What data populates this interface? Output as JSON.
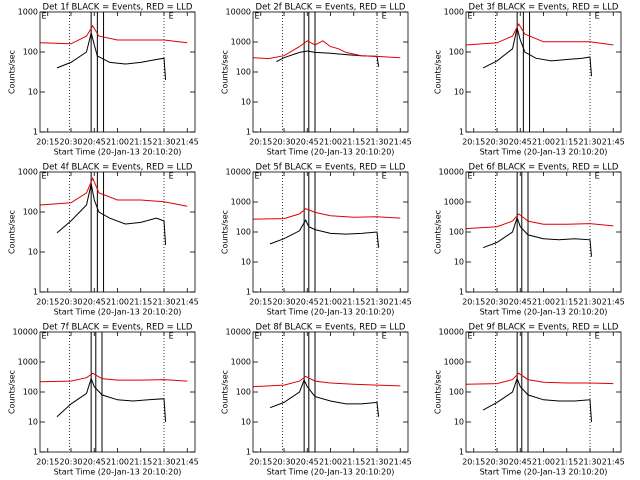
{
  "chart_data": [
    {
      "type": "line",
      "title": "Det 1f BLACK = Events, RED = LLD",
      "x_label": "Start Time (20-Jan-13 20:10:20)",
      "y_label": "Counts/sec",
      "log_y": true,
      "xlim": [
        "20:10",
        "21:50"
      ],
      "xticks": [
        "20:15",
        "20:30",
        "20:45",
        "21:00",
        "21:15",
        "21:30",
        "21:45"
      ],
      "ylim": [
        1,
        1000
      ],
      "yticks": [
        1,
        10,
        100,
        1000
      ],
      "dotted_lines": [
        "20:29",
        "21:30"
      ],
      "solid_lines": [
        "20:43",
        "20:47",
        "20:51"
      ],
      "annotations": [
        {
          "x": "20:11",
          "text": "E"
        },
        {
          "x": "21:33",
          "text": "E"
        }
      ],
      "series": [
        {
          "color": "#000000",
          "x": [
            "20:21",
            "20:30",
            "20:40",
            "20:43",
            "20:45",
            "20:47",
            "20:55",
            "21:05",
            "21:15",
            "21:25",
            "21:30",
            "21:31"
          ],
          "values": [
            40,
            55,
            100,
            300,
            150,
            80,
            55,
            50,
            55,
            65,
            70,
            20
          ]
        },
        {
          "color": "#e00000",
          "x": [
            "20:10",
            "20:30",
            "20:40",
            "20:44",
            "20:48",
            "21:00",
            "21:15",
            "21:30",
            "21:45"
          ],
          "values": [
            170,
            160,
            250,
            450,
            250,
            200,
            200,
            200,
            170
          ]
        }
      ]
    },
    {
      "type": "line",
      "title": "Det 2f BLACK = Events, RED = LLD",
      "x_label": "Start Time (20-Jan-13 20:10:20)",
      "y_label": "Counts/sec",
      "log_y": true,
      "xlim": [
        "20:10",
        "21:50"
      ],
      "xticks": [
        "20:15",
        "20:30",
        "20:45",
        "21:00",
        "21:15",
        "21:30",
        "21:45"
      ],
      "ylim": [
        1,
        10000
      ],
      "yticks": [
        1,
        10,
        100,
        1000,
        10000
      ],
      "dotted_lines": [
        "20:29",
        "21:30"
      ],
      "solid_lines": [
        "20:43",
        "20:46",
        "20:50"
      ],
      "annotations": [
        {
          "x": "20:11",
          "text": "E"
        },
        {
          "x": "21:33",
          "text": "E"
        }
      ],
      "series": [
        {
          "color": "#000000",
          "x": [
            "20:25",
            "20:30",
            "20:40",
            "20:45",
            "20:50",
            "21:00",
            "21:10",
            "21:20",
            "21:30",
            "21:31"
          ],
          "values": [
            220,
            300,
            450,
            500,
            450,
            420,
            380,
            350,
            330,
            150
          ]
        },
        {
          "color": "#e00000",
          "x": [
            "20:10",
            "20:20",
            "20:30",
            "20:40",
            "20:45",
            "20:50",
            "20:55",
            "21:00",
            "21:05",
            "21:10",
            "21:20",
            "21:30",
            "21:45"
          ],
          "values": [
            300,
            280,
            350,
            700,
            1100,
            800,
            1100,
            700,
            600,
            450,
            350,
            330,
            300
          ]
        }
      ]
    },
    {
      "type": "line",
      "title": "Det 3f BLACK = Events, RED = LLD",
      "x_label": "Start Time (20-Jan-13 20:10:20)",
      "y_label": "Counts/sec",
      "log_y": true,
      "xlim": [
        "20:10",
        "21:50"
      ],
      "xticks": [
        "20:15",
        "20:30",
        "20:45",
        "21:00",
        "21:15",
        "21:30",
        "21:45"
      ],
      "ylim": [
        1,
        1000
      ],
      "yticks": [
        1,
        10,
        100,
        1000
      ],
      "dotted_lines": [
        "20:29",
        "21:30"
      ],
      "solid_lines": [
        "20:43",
        "20:47",
        "20:51"
      ],
      "annotations": [
        {
          "x": "20:11",
          "text": "E"
        },
        {
          "x": "21:33",
          "text": "E"
        }
      ],
      "series": [
        {
          "color": "#000000",
          "x": [
            "20:21",
            "20:30",
            "20:40",
            "20:43",
            "20:45",
            "20:48",
            "20:55",
            "21:05",
            "21:15",
            "21:25",
            "21:30",
            "21:31"
          ],
          "values": [
            40,
            60,
            120,
            400,
            200,
            100,
            70,
            60,
            65,
            70,
            75,
            25
          ]
        },
        {
          "color": "#e00000",
          "x": [
            "20:10",
            "20:30",
            "20:40",
            "20:44",
            "20:48",
            "21:00",
            "21:15",
            "21:30",
            "21:45"
          ],
          "values": [
            150,
            170,
            250,
            500,
            280,
            180,
            180,
            180,
            150
          ]
        }
      ]
    },
    {
      "type": "line",
      "title": "Det 4f BLACK = Events, RED = LLD",
      "x_label": "Start Time (20-Jan-13 20:10:20)",
      "y_label": "Counts/sec",
      "log_y": true,
      "xlim": [
        "20:10",
        "21:50"
      ],
      "xticks": [
        "20:15",
        "20:30",
        "20:45",
        "21:00",
        "21:15",
        "21:30",
        "21:45"
      ],
      "ylim": [
        1,
        1000
      ],
      "yticks": [
        1,
        10,
        100,
        1000
      ],
      "dotted_lines": [
        "20:29",
        "21:30"
      ],
      "solid_lines": [
        "20:43",
        "20:47",
        "20:51"
      ],
      "annotations": [
        {
          "x": "20:11",
          "text": "E"
        },
        {
          "x": "21:33",
          "text": "E"
        }
      ],
      "series": [
        {
          "color": "#000000",
          "x": [
            "20:21",
            "20:30",
            "20:40",
            "20:43",
            "20:45",
            "20:48",
            "20:55",
            "21:05",
            "21:15",
            "21:25",
            "21:30",
            "21:31"
          ],
          "values": [
            30,
            60,
            150,
            500,
            200,
            100,
            70,
            50,
            55,
            70,
            60,
            15
          ]
        },
        {
          "color": "#e00000",
          "x": [
            "20:10",
            "20:30",
            "20:40",
            "20:44",
            "20:48",
            "21:00",
            "21:15",
            "21:30",
            "21:45"
          ],
          "values": [
            150,
            170,
            300,
            700,
            300,
            200,
            200,
            180,
            140
          ]
        }
      ]
    },
    {
      "type": "line",
      "title": "Det 5f BLACK = Events, RED = LLD",
      "x_label": "Start Time (20-Jan-13 20:10:20)",
      "y_label": "Counts/sec",
      "log_y": true,
      "xlim": [
        "20:10",
        "21:50"
      ],
      "xticks": [
        "20:15",
        "20:30",
        "20:45",
        "21:00",
        "21:15",
        "21:30",
        "21:45"
      ],
      "ylim": [
        1,
        10000
      ],
      "yticks": [
        1,
        10,
        100,
        1000,
        10000
      ],
      "dotted_lines": [
        "20:29",
        "21:30"
      ],
      "solid_lines": [
        "20:43",
        "20:46",
        "20:50"
      ],
      "annotations": [
        {
          "x": "20:11",
          "text": "E"
        },
        {
          "x": "21:33",
          "text": "E"
        }
      ],
      "series": [
        {
          "color": "#000000",
          "x": [
            "20:21",
            "20:30",
            "20:40",
            "20:44",
            "20:46",
            "20:50",
            "21:00",
            "21:10",
            "21:20",
            "21:30",
            "21:31"
          ],
          "values": [
            40,
            60,
            110,
            250,
            150,
            120,
            90,
            85,
            90,
            100,
            30
          ]
        },
        {
          "color": "#e00000",
          "x": [
            "20:10",
            "20:30",
            "20:40",
            "20:44",
            "20:50",
            "21:00",
            "21:15",
            "21:30",
            "21:45"
          ],
          "values": [
            270,
            280,
            400,
            600,
            450,
            350,
            310,
            320,
            290
          ]
        }
      ]
    },
    {
      "type": "line",
      "title": "Det 6f BLACK = Events, RED = LLD",
      "x_label": "Start Time (20-Jan-13 20:10:20)",
      "y_label": "Counts/sec",
      "log_y": true,
      "xlim": [
        "20:10",
        "21:50"
      ],
      "xticks": [
        "20:15",
        "20:30",
        "20:45",
        "21:00",
        "21:15",
        "21:30",
        "21:45"
      ],
      "ylim": [
        1,
        10000
      ],
      "yticks": [
        1,
        10,
        100,
        1000,
        10000
      ],
      "dotted_lines": [
        "20:29",
        "21:30"
      ],
      "solid_lines": [
        "20:43",
        "20:46",
        "20:50"
      ],
      "annotations": [
        {
          "x": "20:11",
          "text": "E"
        },
        {
          "x": "21:33",
          "text": "E"
        }
      ],
      "series": [
        {
          "color": "#000000",
          "x": [
            "20:21",
            "20:30",
            "20:40",
            "20:43",
            "20:45",
            "20:50",
            "21:00",
            "21:10",
            "21:20",
            "21:30",
            "21:31"
          ],
          "values": [
            30,
            45,
            100,
            300,
            150,
            80,
            60,
            55,
            60,
            55,
            15
          ]
        },
        {
          "color": "#e00000",
          "x": [
            "20:10",
            "20:30",
            "20:40",
            "20:44",
            "20:50",
            "21:00",
            "21:15",
            "21:30",
            "21:45"
          ],
          "values": [
            130,
            150,
            230,
            400,
            230,
            180,
            180,
            190,
            160
          ]
        }
      ]
    },
    {
      "type": "line",
      "title": "Det 7f BLACK = Events, RED = LLD",
      "x_label": "Start Time (20-Jan-13 20:10:20)",
      "y_label": "Counts/sec",
      "log_y": true,
      "xlim": [
        "20:10",
        "21:50"
      ],
      "xticks": [
        "20:15",
        "20:30",
        "20:45",
        "21:00",
        "21:15",
        "21:30",
        "21:45"
      ],
      "ylim": [
        1,
        10000
      ],
      "yticks": [
        1,
        10,
        100,
        1000,
        10000
      ],
      "dotted_lines": [
        "20:29",
        "21:30"
      ],
      "solid_lines": [
        "20:43",
        "20:46",
        "20:50"
      ],
      "annotations": [
        {
          "x": "20:11",
          "text": "E"
        },
        {
          "x": "21:33",
          "text": "E"
        }
      ],
      "series": [
        {
          "color": "#000000",
          "x": [
            "20:21",
            "20:30",
            "20:40",
            "20:43",
            "20:45",
            "20:50",
            "21:00",
            "21:10",
            "21:20",
            "21:30",
            "21:31"
          ],
          "values": [
            15,
            40,
            90,
            280,
            150,
            80,
            55,
            50,
            55,
            60,
            10
          ]
        },
        {
          "color": "#e00000",
          "x": [
            "20:10",
            "20:30",
            "20:40",
            "20:44",
            "20:50",
            "21:00",
            "21:15",
            "21:30",
            "21:45"
          ],
          "values": [
            220,
            230,
            300,
            420,
            280,
            250,
            250,
            260,
            230
          ]
        }
      ]
    },
    {
      "type": "line",
      "title": "Det 8f BLACK = Events, RED = LLD",
      "x_label": "Start Time (20-Jan-13 20:10:20)",
      "y_label": "Counts/sec",
      "log_y": true,
      "xlim": [
        "20:10",
        "21:50"
      ],
      "xticks": [
        "20:15",
        "20:30",
        "20:45",
        "21:00",
        "21:15",
        "21:30",
        "21:45"
      ],
      "ylim": [
        1,
        10000
      ],
      "yticks": [
        1,
        10,
        100,
        1000,
        10000
      ],
      "dotted_lines": [
        "20:29",
        "21:30"
      ],
      "solid_lines": [
        "20:43",
        "20:46",
        "20:50"
      ],
      "annotations": [
        {
          "x": "20:11",
          "text": "E"
        },
        {
          "x": "21:33",
          "text": "E"
        }
      ],
      "series": [
        {
          "color": "#000000",
          "x": [
            "20:21",
            "20:30",
            "20:40",
            "20:43",
            "20:45",
            "20:50",
            "21:00",
            "21:10",
            "21:20",
            "21:30",
            "21:31"
          ],
          "values": [
            30,
            45,
            100,
            250,
            150,
            70,
            50,
            40,
            40,
            45,
            15
          ]
        },
        {
          "color": "#e00000",
          "x": [
            "20:10",
            "20:30",
            "20:40",
            "20:44",
            "20:50",
            "21:00",
            "21:15",
            "21:30",
            "21:45"
          ],
          "values": [
            150,
            170,
            230,
            330,
            230,
            200,
            180,
            170,
            160
          ]
        }
      ]
    },
    {
      "type": "line",
      "title": "Det 9f BLACK = Events, RED = LLD",
      "x_label": "Start Time (20-Jan-13 20:10:20)",
      "y_label": "Counts/sec",
      "log_y": true,
      "xlim": [
        "20:10",
        "21:50"
      ],
      "xticks": [
        "20:15",
        "20:30",
        "20:45",
        "21:00",
        "21:15",
        "21:30",
        "21:45"
      ],
      "ylim": [
        1,
        10000
      ],
      "yticks": [
        1,
        10,
        100,
        1000,
        10000
      ],
      "dotted_lines": [
        "20:29",
        "21:30"
      ],
      "solid_lines": [
        "20:43",
        "20:46",
        "20:50"
      ],
      "annotations": [
        {
          "x": "20:11",
          "text": "E"
        },
        {
          "x": "21:33",
          "text": "E"
        }
      ],
      "series": [
        {
          "color": "#000000",
          "x": [
            "20:21",
            "20:30",
            "20:40",
            "20:43",
            "20:45",
            "20:50",
            "21:00",
            "21:10",
            "21:20",
            "21:30",
            "21:31"
          ],
          "values": [
            25,
            45,
            100,
            280,
            150,
            80,
            55,
            50,
            50,
            55,
            10
          ]
        },
        {
          "color": "#e00000",
          "x": [
            "20:10",
            "20:30",
            "20:40",
            "20:44",
            "20:50",
            "21:00",
            "21:15",
            "21:30",
            "21:45"
          ],
          "values": [
            180,
            190,
            260,
            420,
            260,
            210,
            200,
            200,
            190
          ]
        }
      ]
    }
  ]
}
